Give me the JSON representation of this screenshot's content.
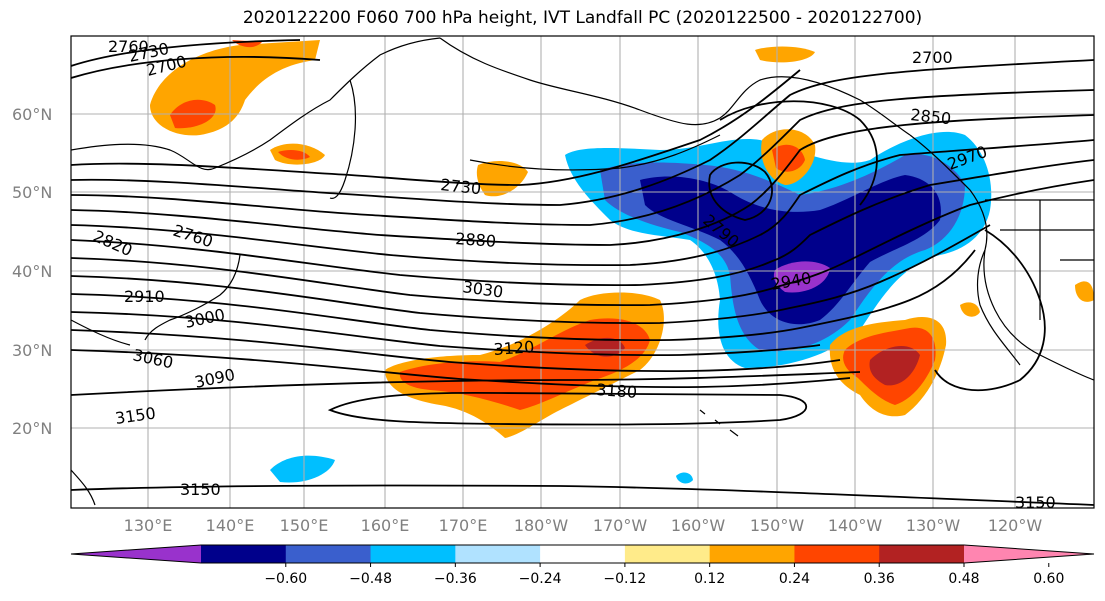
{
  "title": "2020122200 F060 700 hPa height, IVT Landfall PC (2020122500 - 2020122700)",
  "lat_labels": [
    "60°N",
    "50°N",
    "40°N",
    "30°N",
    "20°N"
  ],
  "lon_labels": [
    "130°E",
    "140°E",
    "150°E",
    "160°E",
    "170°E",
    "180°W",
    "170°W",
    "160°W",
    "150°W",
    "140°W",
    "130°W",
    "120°W"
  ],
  "contour_labels": [
    {
      "text": "2760"
    },
    {
      "text": "2730"
    },
    {
      "text": "2700"
    },
    {
      "text": "2700"
    },
    {
      "text": "2850"
    },
    {
      "text": "2970"
    },
    {
      "text": "2730"
    },
    {
      "text": "2880"
    },
    {
      "text": "2790"
    },
    {
      "text": "2820"
    },
    {
      "text": "2760"
    },
    {
      "text": "2910"
    },
    {
      "text": "3000"
    },
    {
      "text": "3030"
    },
    {
      "text": "2940"
    },
    {
      "text": "3060"
    },
    {
      "text": "3120"
    },
    {
      "text": "3090"
    },
    {
      "text": "3180"
    },
    {
      "text": "3150"
    },
    {
      "text": "3150"
    },
    {
      "text": "3150"
    }
  ],
  "colorbar": {
    "colors": [
      "#9932cc",
      "#00008b",
      "#3a5fcd",
      "#00bfff",
      "#b0e2ff",
      "#ffffff",
      "#ffeb8a",
      "#ffa500",
      "#ff4500",
      "#b22222",
      "#ff85b0"
    ],
    "tick_labels": [
      "−0.60",
      "−0.48",
      "−0.36",
      "−0.24",
      "−0.12",
      "0.12",
      "0.24",
      "0.36",
      "0.48",
      "0.60"
    ]
  }
}
